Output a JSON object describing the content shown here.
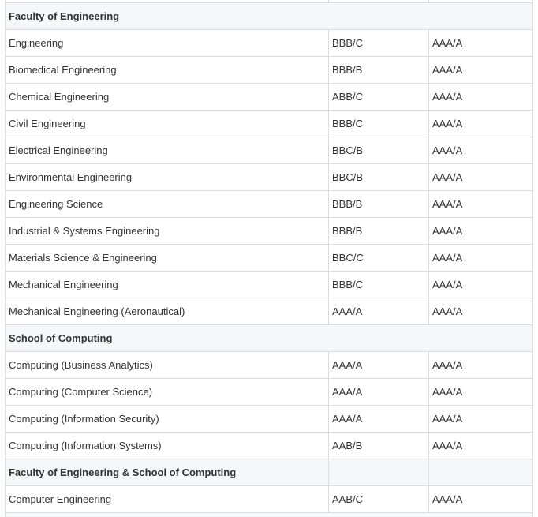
{
  "sections": [
    {
      "title": "Faculty of Engineering",
      "rows": [
        [
          "Engineering",
          "BBB/C",
          "AAA/A"
        ],
        [
          "Biomedical Engineering",
          "BBB/B",
          "AAA/A"
        ],
        [
          "Chemical Engineering",
          "ABB/C",
          "AAA/A"
        ],
        [
          "Civil Engineering",
          "BBB/C",
          "AAA/A"
        ],
        [
          "Electrical Engineering",
          "BBC/B",
          "AAA/A"
        ],
        [
          "Environmental Engineering",
          "BBC/B",
          "AAA/A"
        ],
        [
          "Engineering Science",
          "BBB/B",
          "AAA/A"
        ],
        [
          "Industrial & Systems Engineering",
          "BBB/B",
          "AAA/A"
        ],
        [
          "Materials Science & Engineering",
          "BBC/C",
          "AAA/A"
        ],
        [
          "Mechanical Engineering",
          "BBB/C",
          "AAA/A"
        ],
        [
          "Mechanical Engineering (Aeronautical)",
          "AAA/A",
          "AAA/A"
        ]
      ]
    },
    {
      "title": "School of Computing",
      "rows": [
        [
          "Computing (Business Analytics)",
          "AAA/A",
          "AAA/A"
        ],
        [
          "Computing (Computer Science)",
          "AAA/A",
          "AAA/A"
        ],
        [
          "Computing (Information Security)",
          "AAA/A",
          "AAA/A"
        ],
        [
          "Computing (Information Systems)",
          "AAB/B",
          "AAA/A"
        ]
      ]
    },
    {
      "title": "Faculty of Engineering & School of Computing",
      "rows": [
        [
          "Computer Engineering",
          "AAB/C",
          "AAA/A"
        ]
      ]
    }
  ]
}
